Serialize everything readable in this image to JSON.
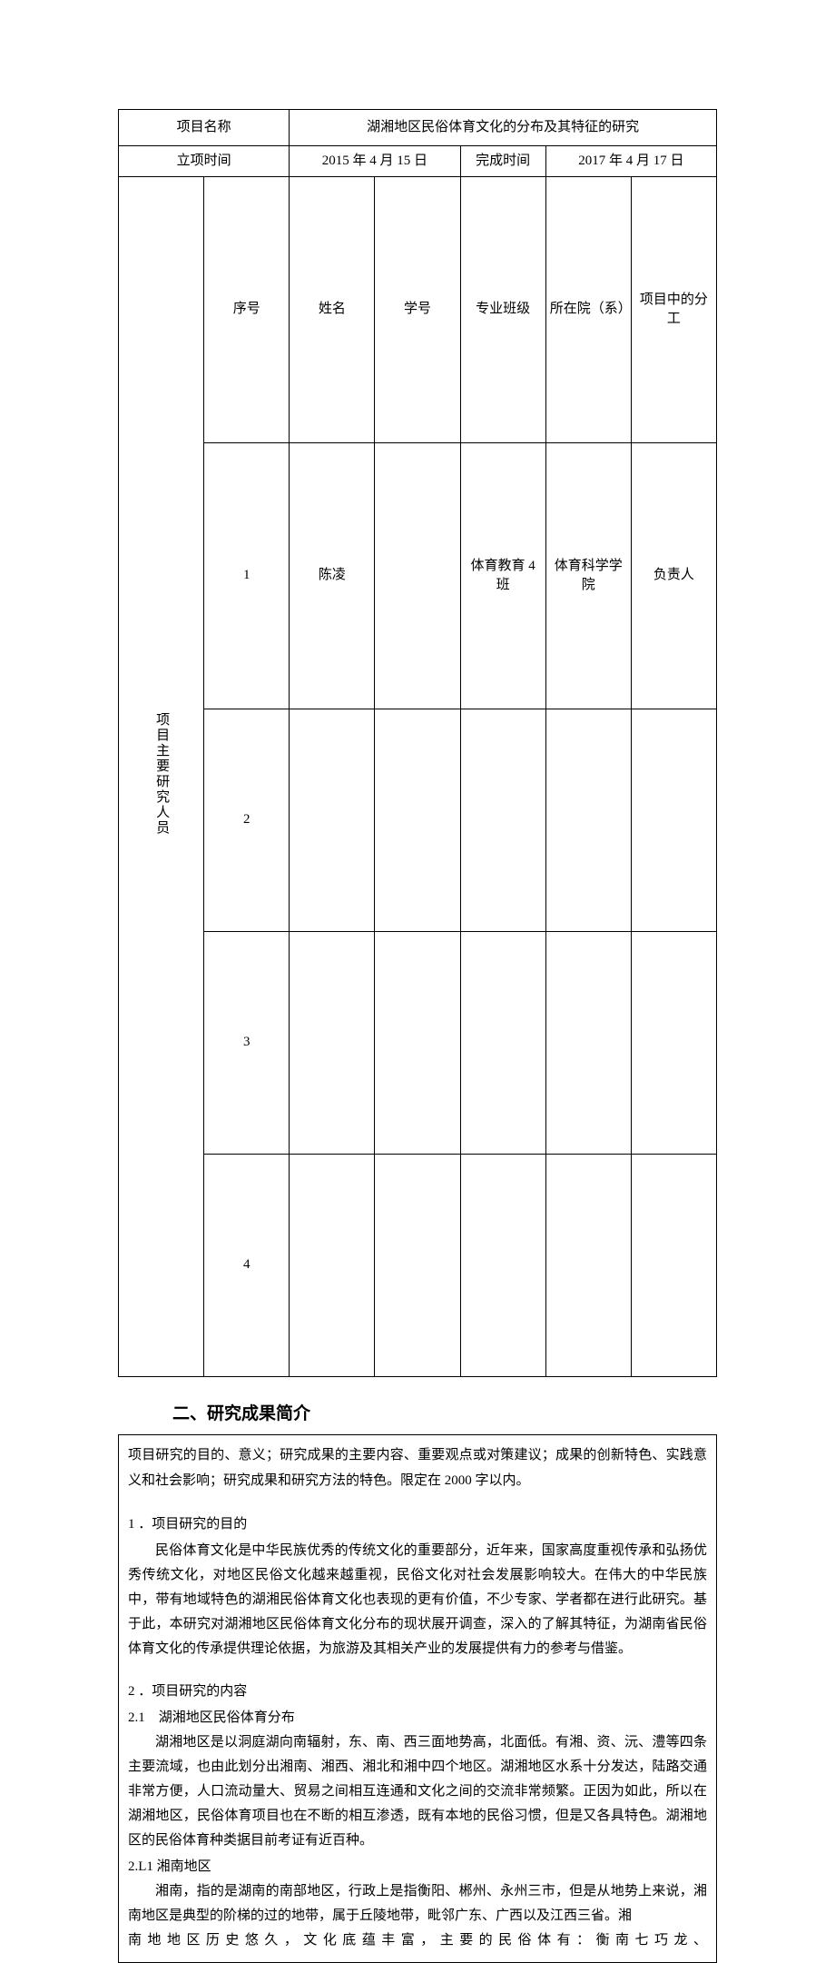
{
  "colors": {
    "text": "#000000",
    "border": "#000000",
    "background": "#ffffff"
  },
  "typography": {
    "body_font": "SimSun",
    "heading_font": "SimHei",
    "body_size_pt": 11,
    "heading_size_pt": 14
  },
  "table": {
    "project_name_label": "项目名称",
    "project_name_value": "湖湘地区民俗体育文化的分布及其特征的研究",
    "start_label": "立项时间",
    "start_value": "2015 年 4 月 15 日",
    "end_label": "完成时间",
    "end_value": "2017 年 4 月 17 日",
    "side_label": "项目主要研究人员",
    "headers": {
      "seq": "序号",
      "name": "姓名",
      "student_id": "学号",
      "class": "专业班级",
      "dept": "所在院（系）",
      "role": "项目中的分工"
    },
    "rows": [
      {
        "seq": "1",
        "name": "陈凌",
        "student_id": "",
        "class": "体育教育 4 班",
        "dept": "体育科学学院",
        "role": "负责人"
      },
      {
        "seq": "2",
        "name": "",
        "student_id": "",
        "class": "",
        "dept": "",
        "role": ""
      },
      {
        "seq": "3",
        "name": "",
        "student_id": "",
        "class": "",
        "dept": "",
        "role": ""
      },
      {
        "seq": "4",
        "name": "",
        "student_id": "",
        "class": "",
        "dept": "",
        "role": ""
      }
    ]
  },
  "section_title": "二、研究成果简介",
  "intro": "项目研究的目的、意义；研究成果的主要内容、重要观点或对策建议；成果的创新特色、实践意义和社会影响；研究成果和研究方法的特色。限定在 2000 字以内。",
  "s1": {
    "heading": "1 ．项目研究的目的",
    "p1": "民俗体育文化是中华民族优秀的传统文化的重要部分，近年来，国家高度重视传承和弘扬优秀传统文化，对地区民俗文化越来越重视，民俗文化对社会发展影响较大。在伟大的中华民族中，带有地域特色的湖湘民俗体育文化也表现的更有价值，不少专家、学者都在进行此研究。基于此，本研究对湖湘地区民俗体育文化分布的现状展开调查，深入的了解其特征，为湖南省民俗体育文化的传承提供理论依据，为旅游及其相关产业的发展提供有力的参考与借鉴。"
  },
  "s2": {
    "heading": "2 ．项目研究的内容",
    "sub1": "2.1　湖湘地区民俗体育分布",
    "p1": "湖湘地区是以洞庭湖向南辐射，东、南、西三面地势高，北面低。有湘、资、沅、澧等四条主要流域，也由此划分出湘南、湘西、湘北和湘中四个地区。湖湘地区水系十分发达，陆路交通非常方便，人口流动量大、贸易之间相互连通和文化之间的交流非常频繁。正因为如此，所以在湖湘地区，民俗体育项目也在不断的相互渗透，既有本地的民俗习惯，但是又各具特色。湖湘地区的民俗体育种类据目前考证有近百种。",
    "sub2": "2.L1 湘南地区",
    "p2": "湘南，指的是湖南的南部地区，行政上是指衡阳、郴州、永州三市，但是从地势上来说，湘南地区是典型的阶梯的过的地带，属于丘陵地带，毗邻广东、广西以及江西三省。湘",
    "p3": "南地地区历史悠久，文化底蕴丰富，主要的民俗体有：衡南七巧龙、"
  }
}
